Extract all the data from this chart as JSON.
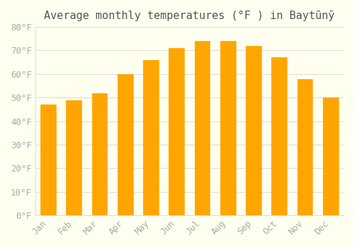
{
  "title": "Average monthly temperatures (°F ) in Baytūnȳ",
  "months": [
    "Jan",
    "Feb",
    "Mar",
    "Apr",
    "May",
    "Jun",
    "Jul",
    "Aug",
    "Sep",
    "Oct",
    "Nov",
    "Dec"
  ],
  "values": [
    47,
    49,
    52,
    60,
    66,
    71,
    74,
    74,
    72,
    67,
    58,
    50
  ],
  "bar_color": "#FFA500",
  "bar_edge_color": "#E8880A",
  "background_color": "#FFFFF0",
  "grid_color": "#DDDDDD",
  "text_color": "#AAAAAA",
  "ylim": [
    0,
    80
  ],
  "yticks": [
    0,
    10,
    20,
    30,
    40,
    50,
    60,
    70,
    80
  ],
  "title_fontsize": 11,
  "tick_fontsize": 9,
  "figsize": [
    5.0,
    3.5
  ],
  "dpi": 100
}
